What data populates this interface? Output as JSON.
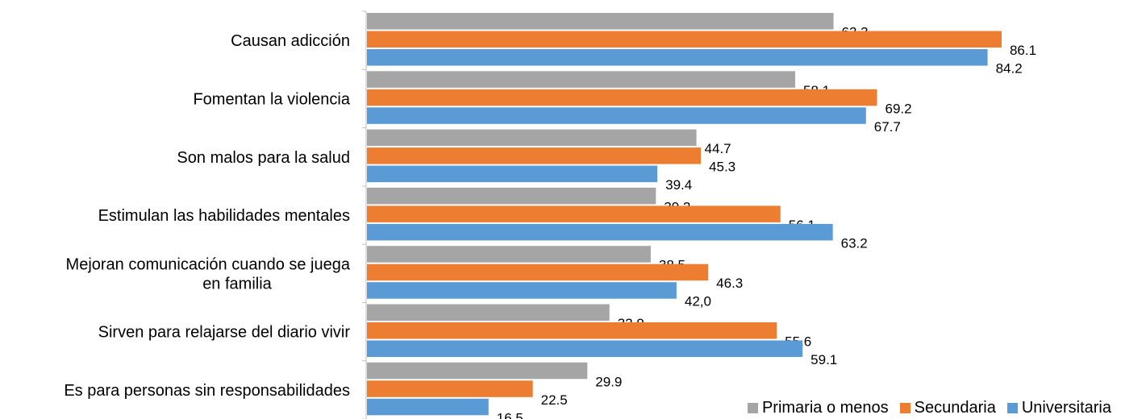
{
  "chart_data": {
    "type": "bar",
    "orientation": "horizontal",
    "categories": [
      [
        "Causan adicción"
      ],
      [
        "Fomentan la violencia"
      ],
      [
        "Son malos para la salud"
      ],
      [
        "Estimulan las habilidades mentales"
      ],
      [
        "Mejoran comunicación cuando se juega",
        "en familia"
      ],
      [
        "Sirven para relajarse del diario vivir"
      ],
      [
        "Es para personas sin responsabilidades"
      ]
    ],
    "series": [
      {
        "name": "Primaria o menos",
        "color": "#a5a5a5",
        "values": [
          63.3,
          58.1,
          44.7,
          39.2,
          38.5,
          32.9,
          29.9
        ],
        "labels": [
          "63.3",
          "58.1",
          "44.7",
          "39.2",
          "38.5",
          "32.9",
          "29.9"
        ]
      },
      {
        "name": "Secundaria",
        "color": "#ed7d31",
        "values": [
          86.1,
          69.2,
          45.3,
          56.1,
          46.3,
          55.6,
          22.5
        ],
        "labels": [
          "86.1",
          "69.2",
          "45.3",
          "56.1",
          "46.3",
          "55.6",
          "22.5"
        ]
      },
      {
        "name": "Universitaria",
        "color": "#5b9bd5",
        "values": [
          84.2,
          67.7,
          39.4,
          63.2,
          42.0,
          59.1,
          16.5
        ],
        "labels": [
          "84.2",
          "67.7",
          "39.4",
          "63.2",
          "42,0",
          "59.1",
          "16.5"
        ]
      }
    ],
    "xlim": [
      0,
      100
    ],
    "grid": false,
    "legend_position": "bottom-right"
  }
}
